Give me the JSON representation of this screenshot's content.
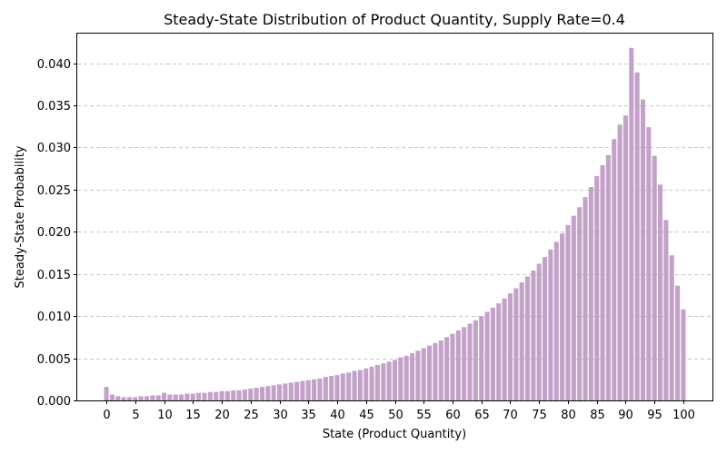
{
  "chart_data": {
    "type": "bar",
    "title": "Steady-State Distribution of Product Quantity, Supply Rate=0.4",
    "xlabel": "State (Product Quantity)",
    "ylabel": "Steady-State Probability",
    "x_ticks": [
      "0",
      "5",
      "10",
      "15",
      "20",
      "25",
      "30",
      "35",
      "40",
      "45",
      "50",
      "55",
      "60",
      "65",
      "70",
      "75",
      "80",
      "85",
      "90",
      "95",
      "100"
    ],
    "y_ticks": [
      "0.000",
      "0.005",
      "0.010",
      "0.015",
      "0.020",
      "0.025",
      "0.030",
      "0.035",
      "0.040"
    ],
    "ylim": [
      0,
      0.0435
    ],
    "xlim": [
      -5.05,
      105.05
    ],
    "grid": "y-dashed",
    "bar_color": "#c3a1c9",
    "categories": [
      0,
      1,
      2,
      3,
      4,
      5,
      6,
      7,
      8,
      9,
      10,
      11,
      12,
      13,
      14,
      15,
      16,
      17,
      18,
      19,
      20,
      21,
      22,
      23,
      24,
      25,
      26,
      27,
      28,
      29,
      30,
      31,
      32,
      33,
      34,
      35,
      36,
      37,
      38,
      39,
      40,
      41,
      42,
      43,
      44,
      45,
      46,
      47,
      48,
      49,
      50,
      51,
      52,
      53,
      54,
      55,
      56,
      57,
      58,
      59,
      60,
      61,
      62,
      63,
      64,
      65,
      66,
      67,
      68,
      69,
      70,
      71,
      72,
      73,
      74,
      75,
      76,
      77,
      78,
      79,
      80,
      81,
      82,
      83,
      84,
      85,
      86,
      87,
      88,
      89,
      90,
      91,
      92,
      93,
      94,
      95,
      96,
      97,
      98,
      99,
      100
    ],
    "values": [
      0.0016,
      0.0007,
      0.0005,
      0.0004,
      0.0004,
      0.0004,
      0.0005,
      0.0005,
      0.0006,
      0.0006,
      0.0009,
      0.0007,
      0.0007,
      0.0007,
      0.0008,
      0.0008,
      0.0009,
      0.0009,
      0.001,
      0.001,
      0.0011,
      0.0011,
      0.0012,
      0.0012,
      0.0013,
      0.0014,
      0.0015,
      0.0016,
      0.0017,
      0.0018,
      0.0019,
      0.002,
      0.0021,
      0.0022,
      0.0023,
      0.0024,
      0.0025,
      0.0026,
      0.0028,
      0.0029,
      0.003,
      0.0032,
      0.0033,
      0.0035,
      0.0036,
      0.0038,
      0.004,
      0.0042,
      0.0044,
      0.0046,
      0.0048,
      0.0051,
      0.0053,
      0.0056,
      0.0059,
      0.0062,
      0.0065,
      0.0068,
      0.0071,
      0.0075,
      0.0079,
      0.0083,
      0.0087,
      0.0091,
      0.0095,
      0.01,
      0.0105,
      0.011,
      0.0115,
      0.0121,
      0.0127,
      0.0133,
      0.014,
      0.0147,
      0.0154,
      0.0162,
      0.017,
      0.0179,
      0.0188,
      0.0198,
      0.0208,
      0.0219,
      0.0229,
      0.0241,
      0.0253,
      0.0266,
      0.0279,
      0.0291,
      0.031,
      0.0327,
      0.0338,
      0.0418,
      0.0389,
      0.0357,
      0.0324,
      0.029,
      0.0256,
      0.0214,
      0.0172,
      0.0136,
      0.0108
    ]
  }
}
